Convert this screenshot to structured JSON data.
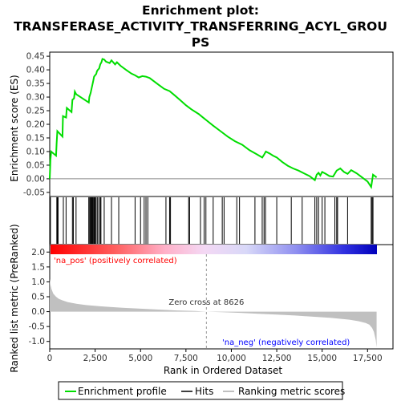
{
  "chart_data": [
    {
      "type": "line",
      "panel": "enrichment",
      "title_lines": [
        "Enrichment plot:",
        "TRANSFERASE_ACTIVITY_TRANSFERRING_ACYL_GROU",
        "PS"
      ],
      "ylabel": "Enrichment score (ES)",
      "xlim": [
        0,
        18900
      ],
      "ylim": [
        -0.065,
        0.465
      ],
      "y_ticks": [
        -0.05,
        0.0,
        0.05,
        0.1,
        0.15,
        0.2,
        0.25,
        0.3,
        0.35,
        0.4,
        0.45
      ],
      "y_tick_labels": [
        "-0.05",
        "0.00",
        "0.05",
        "0.10",
        "0.15",
        "0.20",
        "0.25",
        "0.30",
        "0.35",
        "0.40",
        "0.45"
      ],
      "line_color": "#00dd00",
      "series": [
        {
          "x": [
            0,
            40,
            80,
            350,
            380,
            420,
            700,
            730,
            900,
            940,
            1200,
            1250,
            1340,
            1380,
            1460,
            2150,
            2180,
            2250,
            2300,
            2350,
            2400,
            2440,
            2500,
            2560,
            2600,
            2650,
            2720,
            2780,
            2850,
            2900,
            3000,
            3100,
            3300,
            3400,
            3600,
            3700,
            3900,
            4200,
            4500,
            4700,
            4900,
            5100,
            5300,
            5500,
            5700,
            6000,
            6300,
            6600,
            6900,
            7200,
            7500,
            7800,
            8200,
            8626,
            9000,
            9400,
            9800,
            10200,
            10600,
            11000,
            11400,
            11700,
            11800,
            11900,
            12100,
            12300,
            12500,
            12800,
            13100,
            13400,
            13700,
            14000,
            14300,
            14600,
            14700,
            14800,
            14900,
            15000,
            15200,
            15400,
            15600,
            15800,
            16000,
            16200,
            16400,
            16600,
            16900,
            17200,
            17500,
            17700,
            17800,
            18000
          ],
          "y": [
            0.0,
            0.07,
            0.1,
            0.085,
            0.13,
            0.175,
            0.155,
            0.23,
            0.225,
            0.26,
            0.245,
            0.29,
            0.295,
            0.32,
            0.31,
            0.28,
            0.3,
            0.315,
            0.33,
            0.345,
            0.36,
            0.375,
            0.38,
            0.385,
            0.395,
            0.4,
            0.405,
            0.42,
            0.428,
            0.44,
            0.438,
            0.43,
            0.425,
            0.435,
            0.42,
            0.428,
            0.415,
            0.4,
            0.386,
            0.38,
            0.372,
            0.377,
            0.375,
            0.37,
            0.36,
            0.345,
            0.33,
            0.322,
            0.305,
            0.288,
            0.27,
            0.255,
            0.238,
            0.215,
            0.195,
            0.175,
            0.155,
            0.138,
            0.125,
            0.105,
            0.09,
            0.078,
            0.088,
            0.1,
            0.093,
            0.085,
            0.078,
            0.062,
            0.048,
            0.038,
            0.03,
            0.02,
            0.01,
            -0.005,
            0.015,
            0.022,
            0.012,
            0.025,
            0.018,
            0.01,
            0.008,
            0.03,
            0.038,
            0.025,
            0.018,
            0.032,
            0.02,
            0.005,
            -0.01,
            -0.03,
            0.015,
            0.005
          ]
        }
      ]
    },
    {
      "type": "hits",
      "panel": "hits",
      "hit_positions": [
        20,
        40,
        390,
        420,
        460,
        750,
        900,
        1250,
        1300,
        1450,
        2150,
        2200,
        2240,
        2280,
        2320,
        2360,
        2400,
        2450,
        2500,
        2550,
        2620,
        2700,
        2780,
        2820,
        3000,
        3400,
        3800,
        4700,
        5000,
        5200,
        5300,
        5400,
        6400,
        6600,
        6650,
        7650,
        7700,
        8300,
        8500,
        8600,
        9000,
        9500,
        9600,
        10300,
        10450,
        11300,
        11700,
        11800,
        11880,
        12500,
        13300,
        13900,
        14600,
        14700,
        14800,
        15000,
        15150,
        15700,
        15800,
        15850,
        16400,
        17700,
        17750,
        17800
      ]
    },
    {
      "type": "area",
      "panel": "ranked_metric",
      "ylabel": "Ranked list metric (PreRanked)",
      "xlabel": "Rank in Ordered Dataset",
      "xlim": [
        0,
        18900
      ],
      "ylim": [
        -1.25,
        2.25
      ],
      "x_ticks": [
        0,
        2500,
        5000,
        7500,
        10000,
        12500,
        15000,
        17500
      ],
      "x_tick_labels": [
        "0",
        "2,500",
        "5,000",
        "7,500",
        "10,000",
        "12,500",
        "15,000",
        "17,500"
      ],
      "y_ticks": [
        -1.0,
        -0.5,
        0.0,
        0.5,
        1.0,
        1.5,
        2.0
      ],
      "y_tick_labels": [
        "-1.0",
        "-0.5",
        "0.0",
        "0.5",
        "1.0",
        "1.5",
        "2.0"
      ],
      "x": [
        0,
        40,
        100,
        200,
        350,
        500,
        700,
        1000,
        1500,
        2000,
        3000,
        4000,
        5000,
        6000,
        7000,
        8000,
        8626,
        9500,
        10500,
        11500,
        12500,
        13500,
        14500,
        15500,
        16500,
        17000,
        17400,
        17600,
        17750,
        17850,
        17950,
        18000
      ],
      "values": [
        1.1,
        0.9,
        0.75,
        0.6,
        0.5,
        0.43,
        0.38,
        0.32,
        0.26,
        0.22,
        0.17,
        0.13,
        0.1,
        0.07,
        0.04,
        0.02,
        0.0,
        -0.02,
        -0.04,
        -0.07,
        -0.1,
        -0.13,
        -0.17,
        -0.21,
        -0.27,
        -0.32,
        -0.38,
        -0.44,
        -0.55,
        -0.68,
        -0.95,
        -1.2
      ],
      "fill_color": "#c0c0c0",
      "zero_cross": 8626,
      "zero_cross_label": "Zero cross at 8626",
      "pos_label": "'na_pos' (positively correlated)",
      "neg_label": "'na_neg' (negatively correlated)",
      "pos_color": "#ff0000",
      "neg_color": "#0000ff"
    }
  ],
  "legend": {
    "items": [
      {
        "label": "Enrichment profile",
        "color": "#00dd00"
      },
      {
        "label": "Hits",
        "color": "#000000"
      },
      {
        "label": "Ranking metric scores",
        "color": "#c0c0c0"
      }
    ]
  }
}
